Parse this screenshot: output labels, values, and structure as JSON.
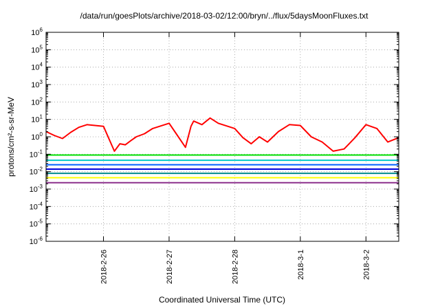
{
  "chart_data": {
    "type": "line",
    "title": "/data/run/goesPlots/archive/2018-03-02/12:00/bryn/../flux/5daysMoonFluxes.txt",
    "xlabel": "Coordinated Universal Time (UTC)",
    "ylabel": "protons/cm²-s-sr-MeV",
    "y_scale": "log",
    "ylim": [
      1e-06,
      1000000.0
    ],
    "y_tick_labels": [
      "10-6",
      "10-5",
      "10-4",
      "10-3",
      "10-2",
      "10-1",
      "100",
      "101",
      "102",
      "103",
      "104",
      "105",
      "106"
    ],
    "x_range": [
      "2018-02-25T03:00",
      "2018-03-02T12:00"
    ],
    "x_ticks": [
      "2018-2-26",
      "2018-2-27",
      "2018-2-28",
      "2018-3-1",
      "2018-3-2"
    ],
    "grid": true,
    "legend": "none",
    "series": [
      {
        "color": "#ff0000",
        "x": [
          "2018-02-25T03:00",
          "2018-02-25T06:00",
          "2018-02-25T09:00",
          "2018-02-25T12:00",
          "2018-02-25T15:00",
          "2018-02-25T18:00",
          "2018-02-26T00:00",
          "2018-02-26T04:00",
          "2018-02-26T06:00",
          "2018-02-26T08:00",
          "2018-02-26T10:00",
          "2018-02-26T12:00",
          "2018-02-26T15:00",
          "2018-02-26T18:00",
          "2018-02-27T00:00",
          "2018-02-27T06:00",
          "2018-02-27T08:00",
          "2018-02-27T09:00",
          "2018-02-27T12:00",
          "2018-02-27T15:00",
          "2018-02-27T18:00",
          "2018-02-28T00:00",
          "2018-02-28T03:00",
          "2018-02-28T06:00",
          "2018-02-28T09:00",
          "2018-02-28T12:00",
          "2018-02-28T16:00",
          "2018-02-28T20:00",
          "2018-03-01T00:00",
          "2018-03-01T04:00",
          "2018-03-01T08:00",
          "2018-03-01T12:00",
          "2018-03-01T16:00",
          "2018-03-01T20:00",
          "2018-03-02T00:00",
          "2018-03-02T04:00",
          "2018-03-02T08:00",
          "2018-03-02T12:00"
        ],
        "values": [
          2,
          1.2,
          0.8,
          1.8,
          3.5,
          5,
          4,
          0.15,
          0.4,
          0.35,
          0.6,
          1,
          1.5,
          3,
          6,
          0.25,
          4,
          8,
          5,
          12,
          6,
          3,
          0.9,
          0.4,
          1,
          0.5,
          2,
          5,
          4.5,
          1,
          0.5,
          0.15,
          0.2,
          0.9,
          5,
          3,
          0.5,
          0.9
        ]
      },
      {
        "color": "#00e000",
        "x": [
          "2018-02-25T03:00",
          "2018-03-02T12:00"
        ],
        "values": [
          0.09,
          0.09
        ]
      },
      {
        "color": "#00c8c8",
        "x": [
          "2018-02-25T03:00",
          "2018-03-02T12:00"
        ],
        "values": [
          0.045,
          0.045
        ]
      },
      {
        "color": "#0060ff",
        "x": [
          "2018-02-25T03:00",
          "2018-03-02T12:00"
        ],
        "values": [
          0.025,
          0.025
        ]
      },
      {
        "color": "#0000dd",
        "x": [
          "2018-02-25T03:00",
          "2018-03-02T12:00"
        ],
        "values": [
          0.014,
          0.014
        ]
      },
      {
        "color": "#008b8b",
        "x": [
          "2018-02-25T03:00",
          "2018-03-02T12:00"
        ],
        "values": [
          0.008,
          0.008
        ]
      },
      {
        "color": "#ffff00",
        "x": [
          "2018-02-25T03:00",
          "2018-03-02T12:00"
        ],
        "values": [
          0.0045,
          0.0045
        ]
      },
      {
        "color": "#8b2f8b",
        "x": [
          "2018-02-25T03:00",
          "2018-03-02T12:00"
        ],
        "values": [
          0.0023,
          0.0023
        ]
      }
    ]
  }
}
